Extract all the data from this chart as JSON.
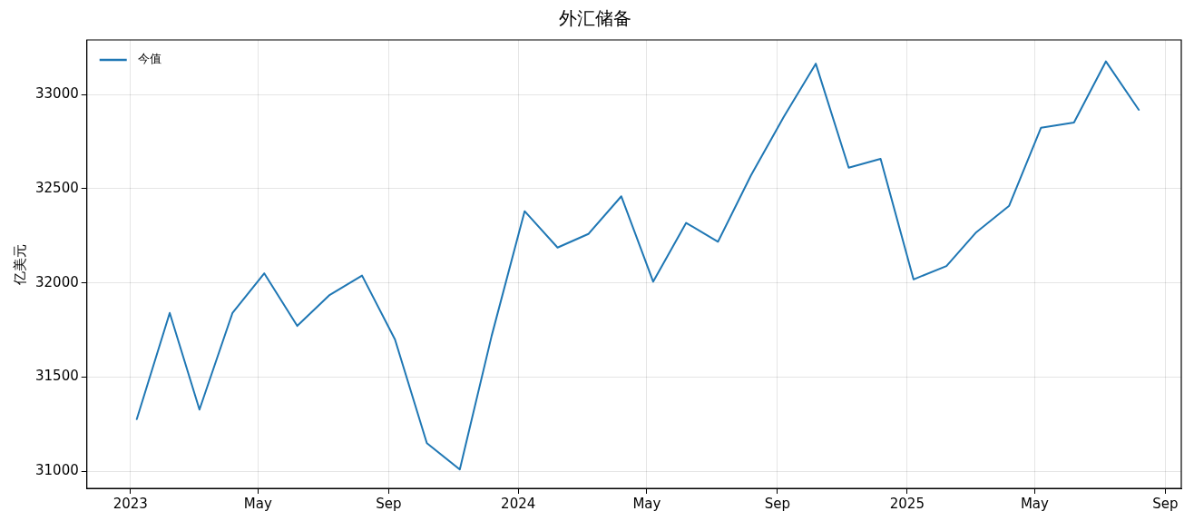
{
  "chart_data": {
    "type": "line",
    "title": "外汇储备",
    "ylabel": "亿美元",
    "x": [
      "2023-01-07",
      "2023-02-07",
      "2023-03-07",
      "2023-04-07",
      "2023-05-07",
      "2023-06-07",
      "2023-07-07",
      "2023-08-07",
      "2023-09-07",
      "2023-10-07",
      "2023-11-07",
      "2023-12-07",
      "2024-01-07",
      "2024-02-07",
      "2024-03-07",
      "2024-04-07",
      "2024-05-07",
      "2024-06-07",
      "2024-07-07",
      "2024-08-07",
      "2024-09-07",
      "2024-10-07",
      "2024-11-07",
      "2024-12-07",
      "2025-01-07",
      "2025-02-07",
      "2025-03-07",
      "2025-04-07",
      "2025-05-07",
      "2025-06-07",
      "2025-07-07",
      "2025-08-07"
    ],
    "series": [
      {
        "name": "今值",
        "color": "#1f77b4",
        "values": [
          31277,
          31841,
          31328,
          31840,
          32051,
          31772,
          31934,
          32039,
          31700,
          31150,
          31010,
          31720,
          32381,
          32188,
          32260,
          32460,
          32007,
          32319,
          32219,
          32571,
          32883,
          33164,
          32612,
          32659,
          32019,
          32090,
          32269,
          32410,
          32824,
          32852,
          33176,
          32919
        ]
      }
    ],
    "xlim": [
      "2022-11-21",
      "2025-09-16"
    ],
    "xticks": [
      {
        "value": "2023-01-01",
        "label": "2023"
      },
      {
        "value": "2023-05-01",
        "label": "May"
      },
      {
        "value": "2023-09-01",
        "label": "Sep"
      },
      {
        "value": "2024-01-01",
        "label": "2024"
      },
      {
        "value": "2024-05-01",
        "label": "May"
      },
      {
        "value": "2024-09-01",
        "label": "Sep"
      },
      {
        "value": "2025-01-01",
        "label": "2025"
      },
      {
        "value": "2025-05-01",
        "label": "May"
      },
      {
        "value": "2025-09-01",
        "label": "Sep"
      }
    ],
    "ylim": [
      30910,
      33290
    ],
    "yticks": [
      31000,
      31500,
      32000,
      32500,
      33000
    ],
    "grid": true,
    "legend": "top left",
    "marker": "none",
    "line_style": "solid"
  }
}
